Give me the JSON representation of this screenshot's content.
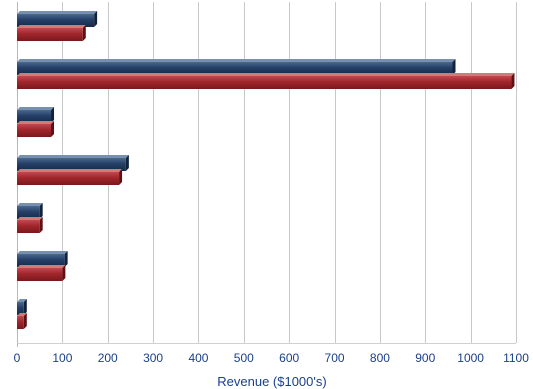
{
  "chart_data": {
    "type": "bar",
    "orientation": "horizontal",
    "title": "",
    "xlabel": "Revenue ($1000's)",
    "ylabel": "",
    "xlim": [
      0,
      1100
    ],
    "ticks": [
      0,
      100,
      200,
      300,
      400,
      500,
      600,
      700,
      800,
      900,
      1000,
      1100
    ],
    "tick_labels": [
      "0",
      "100",
      "200",
      "300",
      "400",
      "500",
      "600",
      "700",
      "800",
      "900",
      "1000",
      "1100"
    ],
    "grid": true,
    "categories": [
      "",
      "",
      "",
      "",
      "",
      "",
      ""
    ],
    "series": [
      {
        "color": "#243f66",
        "values": [
          170,
          960,
          75,
          240,
          50,
          105,
          15
        ]
      },
      {
        "color": "#a1262b",
        "values": [
          145,
          1090,
          75,
          225,
          50,
          100,
          15
        ]
      }
    ]
  }
}
